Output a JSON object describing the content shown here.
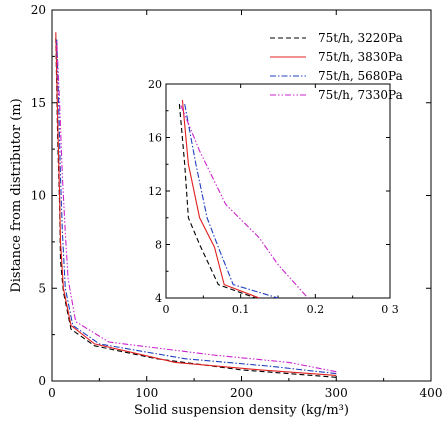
{
  "chart_data": [
    {
      "type": "line",
      "title": "",
      "xlabel": "Solid suspension density (kg/m³)",
      "ylabel": "Distance from distributor (m)",
      "xlim": [
        0,
        400
      ],
      "ylim": [
        0,
        20
      ],
      "xticks": [
        0,
        100,
        200,
        300,
        400
      ],
      "yticks": [
        0,
        5,
        10,
        15,
        20
      ],
      "legend_position": "top-right",
      "grid": false,
      "series": [
        {
          "name": "75t/h, 3220Pa",
          "color": "#000000",
          "dash": "dashed",
          "points": [
            [
              300,
              0.2
            ],
            [
              200,
              0.6
            ],
            [
              110,
              1.2
            ],
            [
              45,
              1.9
            ],
            [
              20,
              2.8
            ],
            [
              12,
              4.8
            ],
            [
              9,
              6.5
            ],
            [
              8,
              9.5
            ],
            [
              6,
              13
            ],
            [
              4,
              18.5
            ]
          ]
        },
        {
          "name": "75t/h, 3830Pa",
          "color": "#e02020",
          "dash": "solid",
          "points": [
            [
              300,
              0.3
            ],
            [
              220,
              0.6
            ],
            [
              130,
              1
            ],
            [
              45,
              2
            ],
            [
              20,
              3
            ],
            [
              12,
              5
            ],
            [
              9,
              7.5
            ],
            [
              8,
              10
            ],
            [
              6,
              14
            ],
            [
              4,
              18.8
            ]
          ]
        },
        {
          "name": "75t/h, 5680Pa",
          "color": "#2040c0",
          "dash": "dashdot",
          "points": [
            [
              300,
              0.4
            ],
            [
              230,
              0.8
            ],
            [
              140,
              1.2
            ],
            [
              50,
              2
            ],
            [
              22,
              3
            ],
            [
              14,
              5
            ],
            [
              11,
              8
            ],
            [
              9,
              11
            ],
            [
              7,
              15
            ],
            [
              5,
              18.5
            ]
          ]
        },
        {
          "name": "75t/h, 7330Pa",
          "color": "#cc22cc",
          "dash": "dashdotdot",
          "points": [
            [
              300,
              0.5
            ],
            [
              250,
              1
            ],
            [
              170,
              1.4
            ],
            [
              60,
              2.1
            ],
            [
              25,
              3.2
            ],
            [
              17,
              5.5
            ],
            [
              14,
              8
            ],
            [
              11,
              11
            ],
            [
              8,
              15
            ],
            [
              5,
              18.4
            ]
          ]
        }
      ]
    },
    {
      "type": "line",
      "title": "",
      "xlim": [
        0,
        0.3
      ],
      "ylim": [
        4,
        20
      ],
      "xticks": [
        0,
        0.1,
        0.2,
        0.3
      ],
      "xtick_labels": [
        "0",
        "0.1",
        "0.2",
        "0 3"
      ],
      "yticks": [
        4,
        8,
        12,
        16,
        20
      ],
      "inset_of": "main",
      "series": [
        {
          "name": "75t/h, 3220Pa",
          "color": "#000000",
          "dash": "dashed",
          "points": [
            [
              0.018,
              18.5
            ],
            [
              0.025,
              14
            ],
            [
              0.03,
              10
            ],
            [
              0.045,
              8
            ],
            [
              0.07,
              5
            ],
            [
              0.12,
              4
            ]
          ]
        },
        {
          "name": "75t/h, 3830Pa",
          "color": "#e02020",
          "dash": "solid",
          "points": [
            [
              0.022,
              18.8
            ],
            [
              0.03,
              14
            ],
            [
              0.045,
              10
            ],
            [
              0.065,
              7.8
            ],
            [
              0.078,
              5
            ],
            [
              0.125,
              4
            ]
          ]
        },
        {
          "name": "75t/h, 5680Pa",
          "color": "#2040c0",
          "dash": "dashdot",
          "points": [
            [
              0.025,
              18.5
            ],
            [
              0.04,
              14
            ],
            [
              0.055,
              10
            ],
            [
              0.07,
              7.8
            ],
            [
              0.09,
              5
            ],
            [
              0.15,
              4
            ]
          ]
        },
        {
          "name": "75t/h, 7330Pa",
          "color": "#cc22cc",
          "dash": "dashdotdot",
          "points": [
            [
              0.02,
              18.4
            ],
            [
              0.045,
              15
            ],
            [
              0.08,
              11
            ],
            [
              0.125,
              8.5
            ],
            [
              0.15,
              6.5
            ],
            [
              0.19,
              4
            ]
          ]
        }
      ]
    }
  ]
}
